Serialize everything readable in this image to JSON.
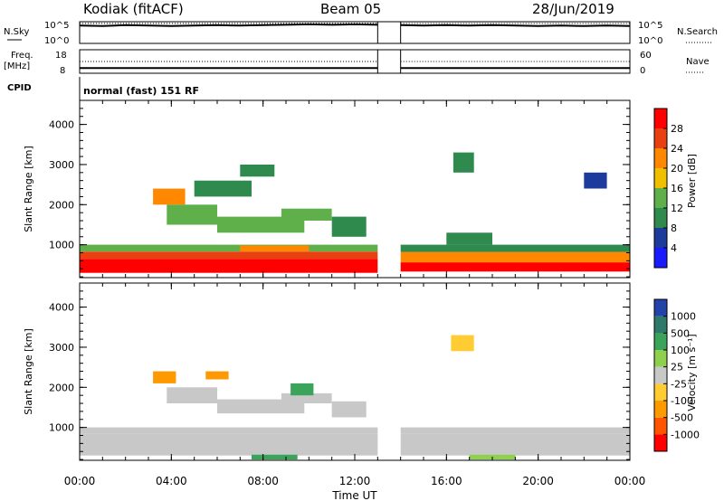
{
  "header": {
    "station": "Kodiak (fitACF)",
    "beam": "Beam 05",
    "date": "28/Jun/2019"
  },
  "colors": {
    "power": [
      "#1a1aff",
      "#1d3b9c",
      "#2f8a4e",
      "#5fb04a",
      "#f0c000",
      "#ff8800",
      "#e84010",
      "#ff0000"
    ],
    "velocity": [
      "#ff0000",
      "#ff5500",
      "#ff9900",
      "#ffcc33",
      "#c8c8c8",
      "#8fd14f",
      "#3aa55a",
      "#2d7a6b",
      "#2244aa"
    ]
  },
  "chart_data": [
    {
      "type": "line",
      "panel": "noise",
      "left_label": "N.Sky",
      "right_label": "N.Search",
      "left_ticks": [
        "10^5",
        "10^0"
      ],
      "right_ticks": [
        "10^5",
        "10^0"
      ],
      "ylim": [
        0,
        5
      ],
      "xlim": [
        0,
        24
      ],
      "gap": [
        13.0,
        14.0
      ],
      "series": [
        {
          "style": "solid",
          "x": [
            0,
            1,
            2,
            3,
            4,
            5,
            6,
            7,
            8,
            9,
            10,
            11,
            12,
            13,
            14,
            15,
            16,
            17,
            18,
            19,
            20,
            21,
            22,
            23,
            24
          ],
          "y": [
            4.1,
            4.0,
            4.2,
            4.1,
            4.0,
            4.1,
            4.2,
            4.1,
            4.2,
            4.3,
            4.4,
            4.3,
            4.4,
            4.3,
            4.2,
            4.1,
            4.2,
            4.1,
            4.2,
            4.1,
            4.0,
            4.1,
            4.0,
            4.1,
            4.0
          ]
        },
        {
          "style": "dotted",
          "x": [
            0,
            1,
            2,
            3,
            4,
            5,
            6,
            7,
            8,
            9,
            10,
            11,
            12,
            13,
            14,
            15,
            16,
            17,
            18,
            19,
            20,
            21,
            22,
            23,
            24
          ],
          "y": [
            4.6,
            4.6,
            4.6,
            4.6,
            4.6,
            4.6,
            4.6,
            4.6,
            4.6,
            4.6,
            4.6,
            4.6,
            4.6,
            4.6,
            4.6,
            4.6,
            4.6,
            4.6,
            4.6,
            4.6,
            4.6,
            4.6,
            4.6,
            4.6,
            4.6
          ]
        }
      ]
    },
    {
      "type": "line",
      "panel": "frequency",
      "left_label": "Freq.\n[MHz]",
      "right_label": "Nave",
      "left_ticks": [
        18,
        8
      ],
      "right_ticks": [
        60,
        0
      ],
      "ylim": [
        8,
        18
      ],
      "xlim": [
        0,
        24
      ],
      "gap": [
        13.0,
        14.0
      ],
      "series": [
        {
          "style": "solid",
          "x": [
            0,
            24
          ],
          "y": [
            10.2,
            10.2
          ]
        },
        {
          "style": "dotted",
          "x": [
            0,
            24
          ],
          "y": [
            13.0,
            13.0
          ]
        }
      ]
    },
    {
      "type": "table",
      "panel": "cpid",
      "label": "CPID",
      "text": "normal (fast) 151 RF"
    },
    {
      "type": "heatmap",
      "panel": "power",
      "ylabel": "Slant Range [km]",
      "xlim": [
        0,
        24
      ],
      "ylim": [
        180,
        4600
      ],
      "y_ticks": [
        1000,
        2000,
        3000,
        4000
      ],
      "colorbar_label": "Power [dB]",
      "colorbar_ticks": [
        4,
        8,
        12,
        16,
        20,
        24,
        28
      ],
      "clim": [
        0,
        32
      ],
      "gap": [
        13.0,
        14.0
      ],
      "regions": [
        {
          "x": [
            0.0,
            13.0
          ],
          "y": [
            300,
            650
          ],
          "value": 31
        },
        {
          "x": [
            0.0,
            13.0
          ],
          "y": [
            650,
            830
          ],
          "value": 25
        },
        {
          "x": [
            0.0,
            13.0
          ],
          "y": [
            830,
            1000
          ],
          "value": 13
        },
        {
          "x": [
            7.0,
            10.0
          ],
          "y": [
            830,
            980
          ],
          "value": 22
        },
        {
          "x": [
            14.0,
            24.0
          ],
          "y": [
            330,
            560
          ],
          "value": 30
        },
        {
          "x": [
            14.0,
            24.0
          ],
          "y": [
            560,
            820
          ],
          "value": 22
        },
        {
          "x": [
            14.0,
            24.0
          ],
          "y": [
            820,
            1000
          ],
          "value": 11
        },
        {
          "x": [
            3.2,
            4.6
          ],
          "y": [
            2000,
            2400
          ],
          "value": 22
        },
        {
          "x": [
            3.8,
            6.0
          ],
          "y": [
            1500,
            2000
          ],
          "value": 13
        },
        {
          "x": [
            6.0,
            9.8
          ],
          "y": [
            1300,
            1700
          ],
          "value": 15
        },
        {
          "x": [
            8.8,
            11.0
          ],
          "y": [
            1600,
            1900
          ],
          "value": 14
        },
        {
          "x": [
            5.0,
            7.5
          ],
          "y": [
            2200,
            2600
          ],
          "value": 10
        },
        {
          "x": [
            7.0,
            8.5
          ],
          "y": [
            2700,
            3000
          ],
          "value": 11
        },
        {
          "x": [
            11.0,
            12.5
          ],
          "y": [
            1200,
            1700
          ],
          "value": 9
        },
        {
          "x": [
            16.0,
            18.0
          ],
          "y": [
            1000,
            1300
          ],
          "value": 8
        },
        {
          "x": [
            16.3,
            17.2
          ],
          "y": [
            2800,
            3300
          ],
          "value": 8
        },
        {
          "x": [
            22.0,
            23.0
          ],
          "y": [
            2400,
            2800
          ],
          "value": 7
        }
      ]
    },
    {
      "type": "heatmap",
      "panel": "velocity",
      "ylabel": "Slant Range [km]",
      "xlabel": "Time UT",
      "xlim": [
        0,
        24
      ],
      "ylim": [
        180,
        4600
      ],
      "y_ticks": [
        1000,
        2000,
        3000,
        4000
      ],
      "x_ticks": [
        "00:00",
        "04:00",
        "08:00",
        "12:00",
        "16:00",
        "20:00",
        "00:00"
      ],
      "colorbar_label": "Velocity [m s⁻¹]",
      "colorbar_ticks": [
        -1000,
        -500,
        -100,
        -25,
        25,
        100,
        500,
        1000
      ],
      "gap": [
        13.0,
        14.0
      ],
      "regions": [
        {
          "x": [
            0.0,
            13.0
          ],
          "y": [
            300,
            850
          ],
          "value": 0
        },
        {
          "x": [
            0.0,
            13.0
          ],
          "y": [
            850,
            1000
          ],
          "value": 0
        },
        {
          "x": [
            14.0,
            24.0
          ],
          "y": [
            300,
            850
          ],
          "value": 0
        },
        {
          "x": [
            14.0,
            24.0
          ],
          "y": [
            850,
            1000
          ],
          "value": 0
        },
        {
          "x": [
            7.5,
            9.5
          ],
          "y": [
            200,
            320
          ],
          "value": 120
        },
        {
          "x": [
            17.0,
            19.0
          ],
          "y": [
            200,
            320
          ],
          "value": 90
        },
        {
          "x": [
            3.2,
            4.2
          ],
          "y": [
            2100,
            2400
          ],
          "value": -200
        },
        {
          "x": [
            3.8,
            6.0
          ],
          "y": [
            1600,
            2000
          ],
          "value": 10
        },
        {
          "x": [
            6.0,
            9.8
          ],
          "y": [
            1350,
            1700
          ],
          "value": 0
        },
        {
          "x": [
            8.8,
            11.0
          ],
          "y": [
            1600,
            1850
          ],
          "value": 0
        },
        {
          "x": [
            5.5,
            6.5
          ],
          "y": [
            2200,
            2400
          ],
          "value": -150
        },
        {
          "x": [
            9.2,
            10.2
          ],
          "y": [
            1800,
            2100
          ],
          "value": 150
        },
        {
          "x": [
            11.0,
            12.5
          ],
          "y": [
            1250,
            1650
          ],
          "value": 5
        },
        {
          "x": [
            16.2,
            17.2
          ],
          "y": [
            2900,
            3300
          ],
          "value": -40
        }
      ]
    }
  ]
}
